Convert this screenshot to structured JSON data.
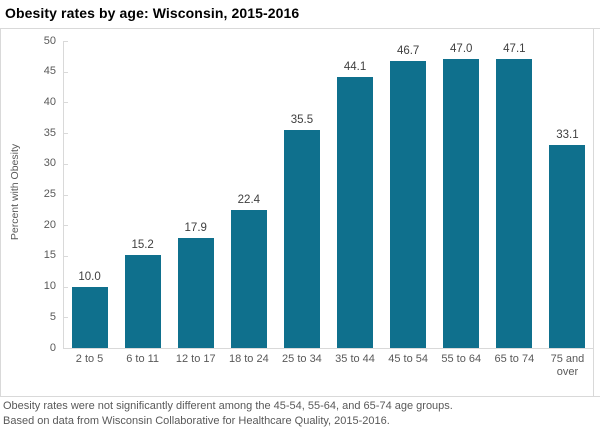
{
  "title": "Obesity rates by age: Wisconsin, 2015-2016",
  "footnotes": {
    "line1": "Obesity rates were not significantly different among the 45-54, 55-64, and 65-74 age groups.",
    "line2": "Based on data from Wisconsin Collaborative for Healthcare Quality, 2015-2016."
  },
  "chart_data": {
    "type": "bar",
    "title": "Obesity rates by age: Wisconsin, 2015-2016",
    "categories": [
      "2 to 5",
      "6 to 11",
      "12 to 17",
      "18 to 24",
      "25 to 34",
      "35 to 44",
      "45 to 54",
      "55 to 64",
      "65 to 74",
      "75 and over"
    ],
    "values": [
      10.0,
      15.2,
      17.9,
      22.4,
      35.5,
      44.1,
      46.7,
      47.0,
      47.1,
      33.1
    ],
    "data_labels": [
      "10.0",
      "15.2",
      "17.9",
      "22.4",
      "35.5",
      "44.1",
      "46.7",
      "47.0",
      "47.1",
      "33.1"
    ],
    "xlabel": "",
    "ylabel": "Percent with Obesity",
    "ylim": [
      0,
      50
    ],
    "yticks": [
      0,
      5,
      10,
      15,
      20,
      25,
      30,
      35,
      40,
      45,
      50
    ],
    "grid": false,
    "legend": "none"
  },
  "colors": {
    "bar": "#0f708d",
    "axis_line": "#d9d9d9",
    "tick_label": "#595959",
    "data_label": "#3f3f3f",
    "title": "#000000",
    "footnote": "#595959"
  }
}
